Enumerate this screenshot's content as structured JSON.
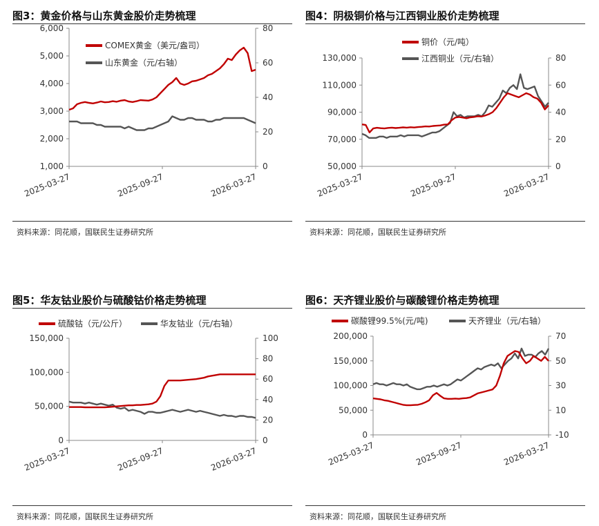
{
  "source_label": "资料来源：同花顺，国联民生证券研究所",
  "colors": {
    "red": "#c00000",
    "gray": "#555555",
    "axis": "#888888"
  },
  "chart_data": [
    {
      "id": "p3",
      "type": "line",
      "title": "图3：黄金价格与山东黄金股价走势梳理",
      "x_ticks": [
        "2025-03-27",
        "2025-09-27",
        "2026-03-27"
      ],
      "left_axis": {
        "min": 1000,
        "max": 6000,
        "ticks": [
          1000,
          2000,
          3000,
          4000,
          5000,
          6000
        ],
        "labels": [
          "1,000",
          "2,000",
          "3,000",
          "4,000",
          "5,000",
          "6,000"
        ]
      },
      "right_axis": {
        "min": 0,
        "max": 80,
        "ticks": [
          0,
          20,
          40,
          60,
          80
        ],
        "labels": [
          "0",
          "20",
          "40",
          "60",
          "80"
        ]
      },
      "series": [
        {
          "name": "COMEX黄金（美元/盎司）",
          "color": "red",
          "axis": "left",
          "values": [
            3050,
            3100,
            3250,
            3300,
            3330,
            3300,
            3280,
            3310,
            3350,
            3320,
            3330,
            3360,
            3340,
            3380,
            3400,
            3350,
            3330,
            3360,
            3400,
            3390,
            3380,
            3420,
            3500,
            3650,
            3800,
            3950,
            4050,
            4200,
            4000,
            3950,
            4000,
            4080,
            4100,
            4150,
            4200,
            4300,
            4350,
            4450,
            4550,
            4700,
            4900,
            4850,
            5050,
            5200,
            5300,
            5100,
            4450,
            4500
          ]
        },
        {
          "name": "山东黄金（元/右轴）",
          "color": "gray",
          "axis": "right",
          "values": [
            26,
            26,
            26,
            25,
            25,
            25,
            25,
            24,
            24,
            23,
            23,
            23,
            23,
            23,
            22,
            23,
            22,
            21,
            21,
            21,
            22,
            22,
            23,
            24,
            25,
            26,
            29,
            28,
            27,
            27,
            28,
            28,
            27,
            27,
            27,
            26,
            26,
            27,
            27,
            28,
            28,
            28,
            28,
            28,
            28,
            27,
            26,
            25
          ]
        }
      ]
    },
    {
      "id": "p4",
      "type": "line",
      "title": "图4：阴极铜价格与江西铜业股价走势梳理",
      "x_ticks": [
        "2025-03-27",
        "2025-09-27",
        "2026-03-27"
      ],
      "left_axis": {
        "min": 50000,
        "max": 130000,
        "ticks": [
          50000,
          70000,
          90000,
          110000,
          130000
        ],
        "labels": [
          "50,000",
          "70,000",
          "90,000",
          "110,000",
          "130,000"
        ]
      },
      "right_axis": {
        "min": 0,
        "max": 80,
        "ticks": [
          0,
          20,
          40,
          60,
          80
        ],
        "labels": [
          "0",
          "20",
          "40",
          "60",
          "80"
        ]
      },
      "series": [
        {
          "name": "铜价（元/吨）",
          "color": "red",
          "axis": "left",
          "values": [
            81000,
            80500,
            75000,
            78000,
            78500,
            78200,
            78000,
            78400,
            78600,
            78300,
            78500,
            78800,
            78600,
            78900,
            78700,
            79000,
            79200,
            79500,
            79400,
            79800,
            80000,
            80200,
            80800,
            81000,
            84000,
            86000,
            86500,
            86000,
            85500,
            86200,
            86500,
            87000,
            86800,
            87500,
            88500,
            90000,
            93000,
            97000,
            101000,
            104000,
            103000,
            102000,
            101000,
            102500,
            104000,
            103000,
            101000,
            100000,
            97000,
            92000,
            95000
          ]
        },
        {
          "name": "江西铜业（元/右轴）",
          "color": "gray",
          "axis": "right",
          "values": [
            24,
            23,
            21,
            21,
            21,
            22,
            22,
            21,
            22,
            22,
            22,
            23,
            22,
            23,
            23,
            23,
            23,
            22,
            23,
            24,
            25,
            25,
            26,
            28,
            30,
            32,
            40,
            37,
            38,
            36,
            37,
            37,
            37,
            38,
            37,
            40,
            45,
            44,
            47,
            50,
            56,
            54,
            58,
            60,
            57,
            68,
            58,
            57,
            58,
            59,
            52,
            48,
            44,
            47
          ]
        }
      ]
    },
    {
      "id": "p5",
      "type": "line",
      "title": "图5：华友钴业股价与硫酸钴价格走势梳理",
      "x_ticks": [
        "2025-03-27",
        "2025-09-27",
        "2026-03-27"
      ],
      "left_axis": {
        "min": 0,
        "max": 150000,
        "ticks": [
          0,
          50000,
          100000,
          150000
        ],
        "labels": [
          "0",
          "50,000",
          "100,000",
          "150,000"
        ]
      },
      "right_axis": {
        "min": 0,
        "max": 100,
        "ticks": [
          0,
          20,
          40,
          60,
          80,
          100
        ],
        "labels": [
          "0",
          "20",
          "40",
          "60",
          "80",
          "100"
        ]
      },
      "series": [
        {
          "name": "硫酸钴（元/公斤）",
          "color": "red",
          "axis": "left",
          "values": [
            49000,
            49000,
            49000,
            49000,
            48500,
            48500,
            48500,
            48500,
            48500,
            48500,
            49000,
            49500,
            50000,
            50500,
            51000,
            51500,
            51500,
            52000,
            52000,
            52500,
            53000,
            54000,
            57000,
            65000,
            80000,
            88000,
            88000,
            88000,
            88000,
            88500,
            89000,
            89500,
            90000,
            91000,
            92000,
            94000,
            95000,
            96000,
            97000,
            97000,
            97000,
            97000,
            97000,
            97000,
            97000,
            97000,
            97000,
            97000
          ]
        },
        {
          "name": "华友钴业（元/右轴）",
          "color": "gray",
          "axis": "right",
          "values": [
            38,
            37,
            37,
            37,
            36,
            37,
            36,
            35,
            36,
            35,
            34,
            35,
            32,
            31,
            32,
            29,
            30,
            29,
            28,
            26,
            28,
            28,
            27,
            27,
            28,
            29,
            30,
            29,
            28,
            29,
            30,
            29,
            28,
            29,
            28,
            27,
            26,
            25,
            24,
            25,
            24,
            24,
            23,
            24,
            24,
            23,
            23,
            22
          ]
        }
      ]
    },
    {
      "id": "p6",
      "type": "line",
      "title": "图6：天齐锂业股价与碳酸锂价格走势梳理",
      "x_ticks": [
        "2025-03-27",
        "2025-09-27",
        "2026-03-27"
      ],
      "left_axis": {
        "min": 0,
        "max": 200000,
        "ticks": [
          0,
          50000,
          100000,
          150000,
          200000
        ],
        "labels": [
          "0",
          "50,000",
          "100,000",
          "150,000",
          "200,000"
        ]
      },
      "right_axis": {
        "min": -10,
        "max": 70,
        "ticks": [
          -10,
          10,
          30,
          50,
          70
        ],
        "labels": [
          "-10",
          "10",
          "30",
          "50",
          "70"
        ]
      },
      "series": [
        {
          "name": "碳酸锂99.5%(元/吨)",
          "color": "red",
          "axis": "left",
          "values": [
            74000,
            73000,
            72000,
            70000,
            69000,
            67000,
            65000,
            63000,
            61000,
            60000,
            60000,
            60500,
            61000,
            63000,
            66000,
            70000,
            80000,
            85000,
            79000,
            74000,
            73000,
            73000,
            73500,
            73000,
            74000,
            74500,
            76000,
            80000,
            84000,
            86000,
            88000,
            90000,
            92000,
            100000,
            120000,
            145000,
            160000,
            165000,
            170000,
            168000,
            155000,
            145000,
            150000,
            160000,
            155000,
            150000,
            158000,
            150000
          ]
        },
        {
          "name": "天齐锂业（元/右轴）",
          "color": "gray",
          "axis": "right",
          "values": [
            31,
            32,
            31,
            31,
            30,
            31,
            32,
            31,
            31,
            30,
            31,
            29,
            28,
            27,
            27,
            28,
            29,
            29,
            30,
            29,
            30,
            31,
            30,
            31,
            33,
            35,
            34,
            36,
            38,
            40,
            42,
            44,
            43,
            45,
            46,
            47,
            46,
            48,
            44,
            47,
            50,
            52,
            56,
            52,
            60,
            54,
            55,
            55,
            53,
            56,
            58,
            55,
            60
          ]
        }
      ]
    }
  ]
}
